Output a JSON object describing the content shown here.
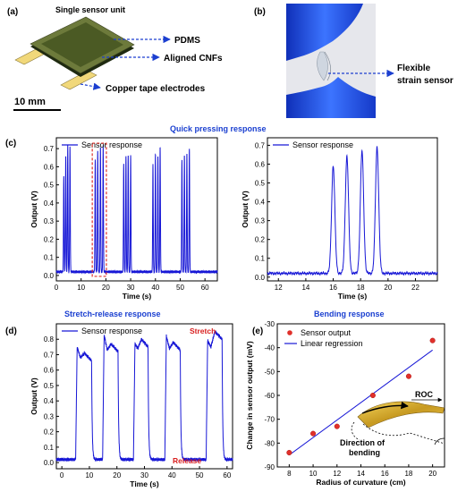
{
  "labels": {
    "a": "(a)",
    "b": "(b)",
    "c": "(c)",
    "d": "(d)",
    "e": "(e)",
    "single_sensor": "Single sensor unit",
    "pdms": "PDMS",
    "cnfs": "Aligned CNFs",
    "copper": "Copper tape electrodes",
    "scalebar": "10 mm",
    "flexible1": "Flexible",
    "flexible2": "strain sensor",
    "quick": "Quick pressing response",
    "stretch_release": "Stretch-release response",
    "bending": "Bending response",
    "stretch": "Stretch",
    "release": "Release",
    "roc": "ROC",
    "direction1": "Direction of",
    "direction2": "bending"
  },
  "colors": {
    "series": "#1717d6",
    "accent_title": "#1a3fd0",
    "marker": "#e0302a",
    "annotation": "#d81e1e"
  },
  "chart_data": [
    {
      "id": "c_left",
      "type": "line",
      "xlabel": "Time (s)",
      "ylabel": "Output (V)",
      "xlim": [
        0,
        65
      ],
      "ylim": [
        -0.03,
        0.76
      ],
      "xticks": [
        0,
        10,
        20,
        30,
        40,
        50,
        60
      ],
      "yticks": [
        0.0,
        0.1,
        0.2,
        0.3,
        0.4,
        0.5,
        0.6,
        0.7
      ],
      "series": [
        {
          "name": "Sensor response",
          "baseline": 0.02,
          "peaks": [
            {
              "t": 3.0,
              "a": 0.55
            },
            {
              "t": 3.8,
              "a": 0.66
            },
            {
              "t": 4.6,
              "a": 0.72
            },
            {
              "t": 5.5,
              "a": 0.71
            },
            {
              "t": 15.7,
              "a": 0.64
            },
            {
              "t": 16.7,
              "a": 0.69
            },
            {
              "t": 17.8,
              "a": 0.71
            },
            {
              "t": 18.9,
              "a": 0.72
            },
            {
              "t": 27.2,
              "a": 0.62
            },
            {
              "t": 28.1,
              "a": 0.66
            },
            {
              "t": 29.0,
              "a": 0.66
            },
            {
              "t": 30.0,
              "a": 0.66
            },
            {
              "t": 39.0,
              "a": 0.61
            },
            {
              "t": 40.0,
              "a": 0.67
            },
            {
              "t": 41.0,
              "a": 0.66
            },
            {
              "t": 41.9,
              "a": 0.71
            },
            {
              "t": 50.7,
              "a": 0.63
            },
            {
              "t": 51.7,
              "a": 0.66
            },
            {
              "t": 52.7,
              "a": 0.67
            },
            {
              "t": 53.7,
              "a": 0.7
            }
          ]
        }
      ],
      "highlight": {
        "x": [
          14.5,
          20.2
        ],
        "y": [
          -0.005,
          0.73
        ]
      },
      "legend": "top-left"
    },
    {
      "id": "c_right",
      "type": "line",
      "xlabel": "Time (s)",
      "ylabel": "Output (V)",
      "xlim": [
        11.2,
        23.6
      ],
      "ylim": [
        -0.02,
        0.74
      ],
      "xticks": [
        12,
        14,
        16,
        18,
        20,
        22
      ],
      "yticks": [
        0.0,
        0.1,
        0.2,
        0.3,
        0.4,
        0.5,
        0.6,
        0.7
      ],
      "series": [
        {
          "name": "Sensor response",
          "baseline": 0.02,
          "peaks": [
            {
              "t": 16.0,
              "a": 0.59
            },
            {
              "t": 17.0,
              "a": 0.64
            },
            {
              "t": 18.1,
              "a": 0.67
            },
            {
              "t": 19.2,
              "a": 0.69
            }
          ]
        }
      ],
      "legend": "top-left"
    },
    {
      "id": "d",
      "type": "line",
      "xlabel": "Time (s)",
      "ylabel": "Output (V)",
      "xlim": [
        -2,
        62
      ],
      "ylim": [
        -0.04,
        0.9
      ],
      "xticks": [
        0,
        10,
        20,
        30,
        40,
        50,
        60
      ],
      "yticks": [
        0.0,
        0.1,
        0.2,
        0.3,
        0.4,
        0.5,
        0.6,
        0.7,
        0.8
      ],
      "series": [
        {
          "name": "Sensor response",
          "baseline": 0.02,
          "pulses": [
            {
              "s": 5.0,
              "e": 10.8,
              "p1": 0.73,
              "d": 0.66,
              "p2": 0.69
            },
            {
              "s": 14.8,
              "e": 20.4,
              "p1": 0.81,
              "d": 0.71,
              "p2": 0.75
            },
            {
              "s": 26.0,
              "e": 31.3,
              "p1": 0.75,
              "d": 0.72,
              "p2": 0.78
            },
            {
              "s": 37.4,
              "e": 43.0,
              "p1": 0.8,
              "d": 0.72,
              "p2": 0.76
            },
            {
              "s": 52.4,
              "e": 58.2,
              "p1": 0.77,
              "d": 0.73,
              "p2": 0.83
            }
          ]
        }
      ],
      "legend": "top-left"
    },
    {
      "id": "e",
      "type": "scatter",
      "xlabel": "Radius of curvature (cm)",
      "ylabel": "Change in sensor output (mV)",
      "xlim": [
        7,
        21
      ],
      "ylim": [
        -90,
        -30
      ],
      "xticks": [
        8,
        10,
        12,
        14,
        16,
        18,
        20
      ],
      "yticks": [
        -90,
        -80,
        -70,
        -60,
        -50,
        -40,
        -30
      ],
      "series": [
        {
          "name": "Sensor output",
          "x": [
            8,
            10,
            12,
            15,
            18,
            20
          ],
          "y": [
            -84,
            -76,
            -73,
            -60,
            -52,
            -37
          ]
        },
        {
          "name": "Linear regression",
          "x": [
            8,
            20
          ],
          "y": [
            -85,
            -41
          ]
        }
      ],
      "legend": "top-left"
    }
  ]
}
